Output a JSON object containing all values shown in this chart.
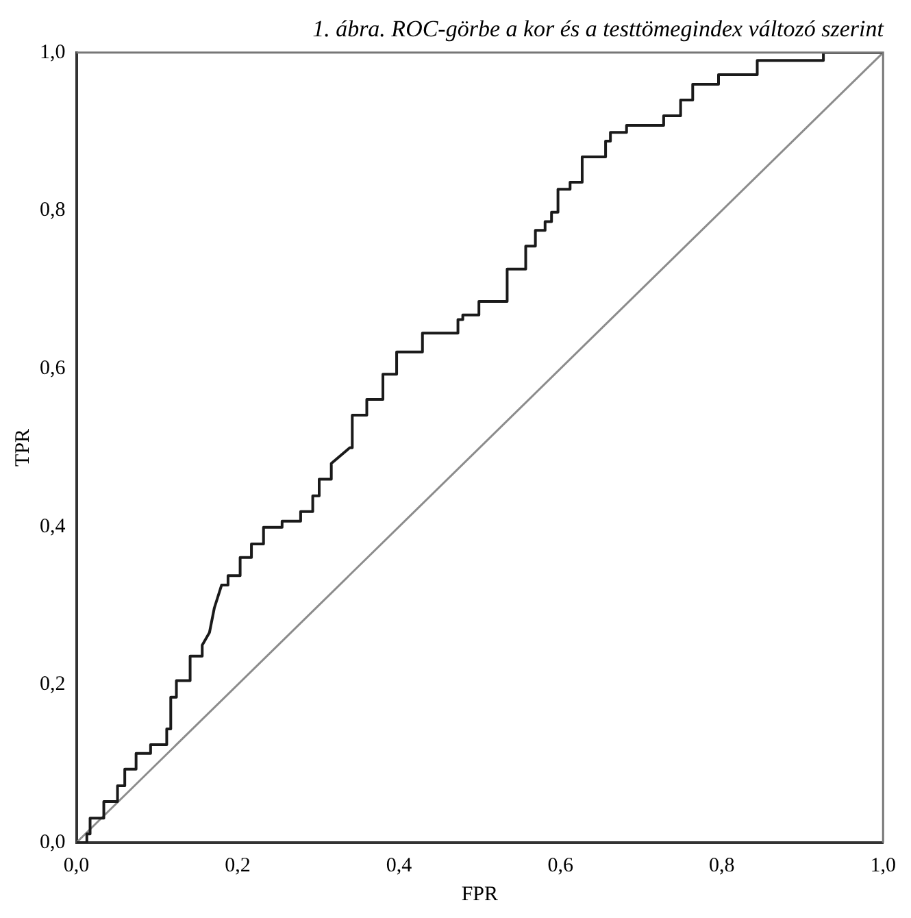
{
  "chart_data": {
    "type": "line",
    "title": "1. ábra. ROC-görbe a kor és a testtömegindex változó szerint",
    "xlabel": "FPR",
    "ylabel": "TPR",
    "xlim": [
      0,
      1
    ],
    "ylim": [
      0,
      1
    ],
    "xticks": [
      {
        "value": 0,
        "label": "0,0"
      },
      {
        "value": 0.2,
        "label": "0,2"
      },
      {
        "value": 0.4,
        "label": "0,4"
      },
      {
        "value": 0.6,
        "label": "0,6"
      },
      {
        "value": 0.8,
        "label": "0,8"
      },
      {
        "value": 1,
        "label": "1,0"
      }
    ],
    "yticks": [
      {
        "value": 0,
        "label": "0,0"
      },
      {
        "value": 0.2,
        "label": "0,2"
      },
      {
        "value": 0.4,
        "label": "0,4"
      },
      {
        "value": 0.6,
        "label": "0,6"
      },
      {
        "value": 0.8,
        "label": "0,8"
      },
      {
        "value": 1,
        "label": "1,0"
      }
    ],
    "grid": false,
    "legend": false,
    "marker": "none",
    "line_style": "solid",
    "series": [
      {
        "color": "#1a1a1a",
        "x": [
          0,
          0.013,
          0.013,
          0.017,
          0.017,
          0.034,
          0.034,
          0.051,
          0.051,
          0.06,
          0.06,
          0.074,
          0.074,
          0.092,
          0.092,
          0.112,
          0.112,
          0.117,
          0.117,
          0.124,
          0.124,
          0.141,
          0.141,
          0.156,
          0.156,
          0.165,
          0.171,
          0.18,
          0.188,
          0.188,
          0.203,
          0.203,
          0.217,
          0.217,
          0.232,
          0.232,
          0.255,
          0.255,
          0.278,
          0.278,
          0.293,
          0.293,
          0.301,
          0.301,
          0.316,
          0.316,
          0.339,
          0.342,
          0.342,
          0.36,
          0.36,
          0.38,
          0.38,
          0.397,
          0.397,
          0.429,
          0.429,
          0.473,
          0.473,
          0.479,
          0.479,
          0.499,
          0.499,
          0.534,
          0.534,
          0.557,
          0.557,
          0.569,
          0.569,
          0.581,
          0.581,
          0.589,
          0.589,
          0.597,
          0.597,
          0.612,
          0.612,
          0.627,
          0.627,
          0.656,
          0.656,
          0.662,
          0.662,
          0.682,
          0.682,
          0.728,
          0.728,
          0.749,
          0.749,
          0.764,
          0.764,
          0.796,
          0.796,
          0.844,
          0.844,
          0.926,
          0.926,
          1.0
        ],
        "values": [
          0,
          0,
          0.011,
          0.011,
          0.031,
          0.031,
          0.052,
          0.052,
          0.072,
          0.072,
          0.093,
          0.093,
          0.113,
          0.113,
          0.124,
          0.124,
          0.144,
          0.144,
          0.184,
          0.184,
          0.205,
          0.205,
          0.236,
          0.236,
          0.25,
          0.266,
          0.297,
          0.326,
          0.326,
          0.338,
          0.338,
          0.361,
          0.361,
          0.378,
          0.378,
          0.399,
          0.399,
          0.407,
          0.407,
          0.419,
          0.419,
          0.439,
          0.439,
          0.46,
          0.46,
          0.48,
          0.5,
          0.5,
          0.541,
          0.541,
          0.561,
          0.561,
          0.593,
          0.593,
          0.621,
          0.621,
          0.645,
          0.645,
          0.662,
          0.662,
          0.668,
          0.668,
          0.685,
          0.685,
          0.726,
          0.726,
          0.755,
          0.755,
          0.775,
          0.775,
          0.786,
          0.786,
          0.798,
          0.798,
          0.827,
          0.827,
          0.836,
          0.836,
          0.868,
          0.868,
          0.888,
          0.888,
          0.899,
          0.899,
          0.908,
          0.908,
          0.92,
          0.92,
          0.94,
          0.94,
          0.96,
          0.96,
          0.972,
          0.972,
          0.99,
          0.99,
          1.0,
          1.0
        ]
      },
      {
        "color": "#8c8c8c",
        "x": [
          0,
          1
        ],
        "values": [
          0,
          1
        ]
      }
    ]
  }
}
